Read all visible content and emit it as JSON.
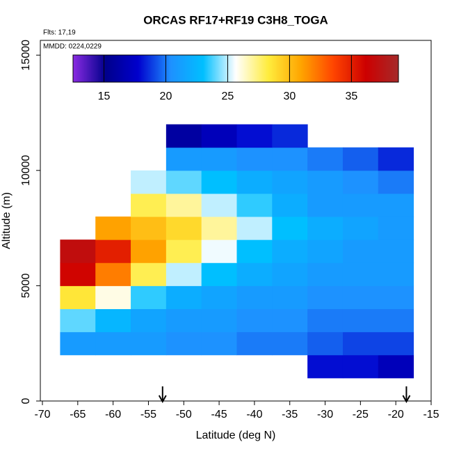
{
  "chart_data": {
    "type": "heatmap",
    "title": "ORCAS RF17+RF19 C3H8_TOGA",
    "annotations": [
      "Flts: 17,19",
      "MMDD: 0224,0229"
    ],
    "x_label": "Latitude (deg N)",
    "y_label": "Altitude (m)",
    "x_bins": [
      -67.5,
      -62.5,
      -57.5,
      -52.5,
      -47.5,
      -42.5,
      -37.5,
      -32.5,
      -27.5,
      -22.5,
      -17.5
    ],
    "y_bins": [
      1000,
      2000,
      3000,
      4000,
      5000,
      6000,
      7000,
      8000,
      9000,
      10000,
      11000,
      12000
    ],
    "values": [
      [
        null,
        null,
        null,
        null,
        null,
        null,
        null,
        18,
        18,
        17
      ],
      [
        21,
        21,
        21,
        20.5,
        20.5,
        20,
        20,
        19.5,
        19,
        19
      ],
      [
        24,
        22.5,
        21.5,
        21,
        21,
        20.5,
        20.5,
        20,
        20,
        20
      ],
      [
        28.5,
        26,
        23.5,
        22,
        21.5,
        21,
        21,
        20.5,
        20.5,
        20.5
      ],
      [
        36,
        32,
        28,
        25,
        23,
        22,
        21.5,
        21,
        21,
        21
      ],
      [
        37,
        35,
        31,
        28,
        25.5,
        23,
        22,
        21.5,
        21,
        21
      ],
      [
        null,
        31,
        30,
        29,
        27,
        25,
        23,
        22,
        21.5,
        21
      ],
      [
        null,
        null,
        28,
        27,
        25,
        23.5,
        22,
        21,
        21,
        21
      ],
      [
        null,
        null,
        25,
        24,
        23,
        22,
        21.5,
        21,
        20.5,
        20
      ],
      [
        null,
        null,
        null,
        21,
        21,
        20.5,
        20.5,
        20,
        19.5,
        18.5
      ],
      [
        null,
        null,
        null,
        16,
        17,
        18,
        18.5,
        null,
        null,
        null
      ]
    ],
    "xlim": [
      -70,
      -15
    ],
    "ylim": [
      0,
      15640
    ],
    "xticks": [
      -70,
      -65,
      -60,
      -55,
      -50,
      -45,
      -40,
      -35,
      -30,
      -25,
      -20,
      -15
    ],
    "yticks": [
      0,
      5000,
      10000,
      15000
    ],
    "colorbar": {
      "lim": [
        12.5,
        38.8
      ],
      "ticks": [
        15,
        20,
        25,
        30,
        35
      ],
      "colors": [
        "#8a2be2",
        "#00008b",
        "#0000cd",
        "#1e90ff",
        "#00bfff",
        "#ffffff",
        "#ffec3d",
        "#ffa500",
        "#ff4500",
        "#cd0000",
        "#a52a2a"
      ]
    },
    "arrows_x": [
      -53,
      -18.5
    ]
  }
}
